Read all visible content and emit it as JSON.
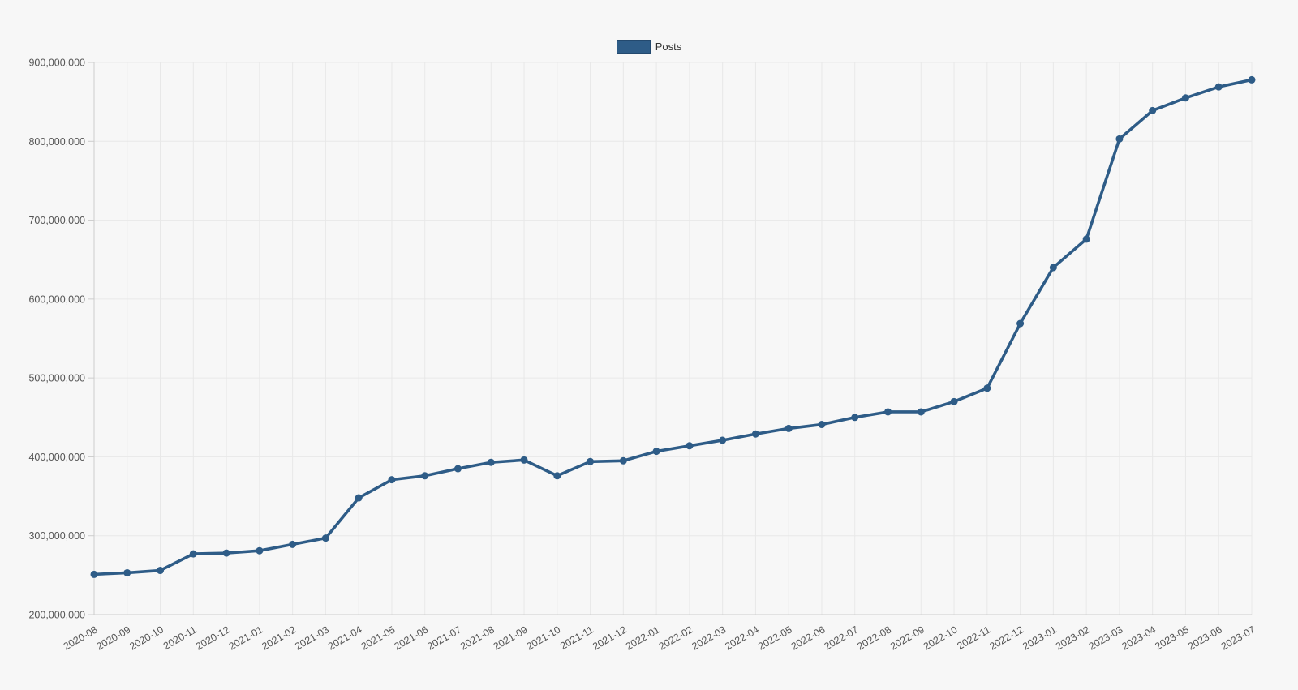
{
  "page": {
    "background": "#f7f7f7"
  },
  "legend": {
    "items": [
      {
        "label": "Posts",
        "color": "#2e5c87",
        "border": "#23496e"
      }
    ]
  },
  "chart_data": {
    "type": "line",
    "title": "",
    "xlabel": "",
    "ylabel": "",
    "legend_position": "top-center",
    "grid": "on",
    "marker": "circle",
    "ylim": [
      200000000,
      900000000
    ],
    "ytick_step": 100000000,
    "ytick_labels": [
      "200,000,000",
      "300,000,000",
      "400,000,000",
      "500,000,000",
      "600,000,000",
      "700,000,000",
      "800,000,000",
      "900,000,000"
    ],
    "categories": [
      "2020-08",
      "2020-09",
      "2020-10",
      "2020-11",
      "2020-12",
      "2021-01",
      "2021-02",
      "2021-03",
      "2021-04",
      "2021-05",
      "2021-06",
      "2021-07",
      "2021-08",
      "2021-09",
      "2021-10",
      "2021-11",
      "2021-12",
      "2022-01",
      "2022-02",
      "2022-03",
      "2022-04",
      "2022-05",
      "2022-06",
      "2022-07",
      "2022-08",
      "2022-09",
      "2022-10",
      "2022-11",
      "2022-12",
      "2023-01",
      "2023-02",
      "2023-03",
      "2023-04",
      "2023-05",
      "2023-06",
      "2023-07"
    ],
    "series": [
      {
        "name": "Posts",
        "color": "#2e5c87",
        "values": [
          251000000,
          253000000,
          256000000,
          277000000,
          278000000,
          281000000,
          289000000,
          297000000,
          348000000,
          371000000,
          376000000,
          385000000,
          393000000,
          396000000,
          376000000,
          394000000,
          395000000,
          407000000,
          414000000,
          421000000,
          429000000,
          436000000,
          441000000,
          450000000,
          457000000,
          457000000,
          470000000,
          487000000,
          569000000,
          640000000,
          676000000,
          803000000,
          839000000,
          855000000,
          869000000,
          878000000
        ]
      }
    ],
    "colors": {
      "line": "#2e5c87",
      "grid": "#e8e8e8",
      "axis": "#cccccc",
      "tick_text": "#555555",
      "legend_text": "#333333"
    }
  }
}
